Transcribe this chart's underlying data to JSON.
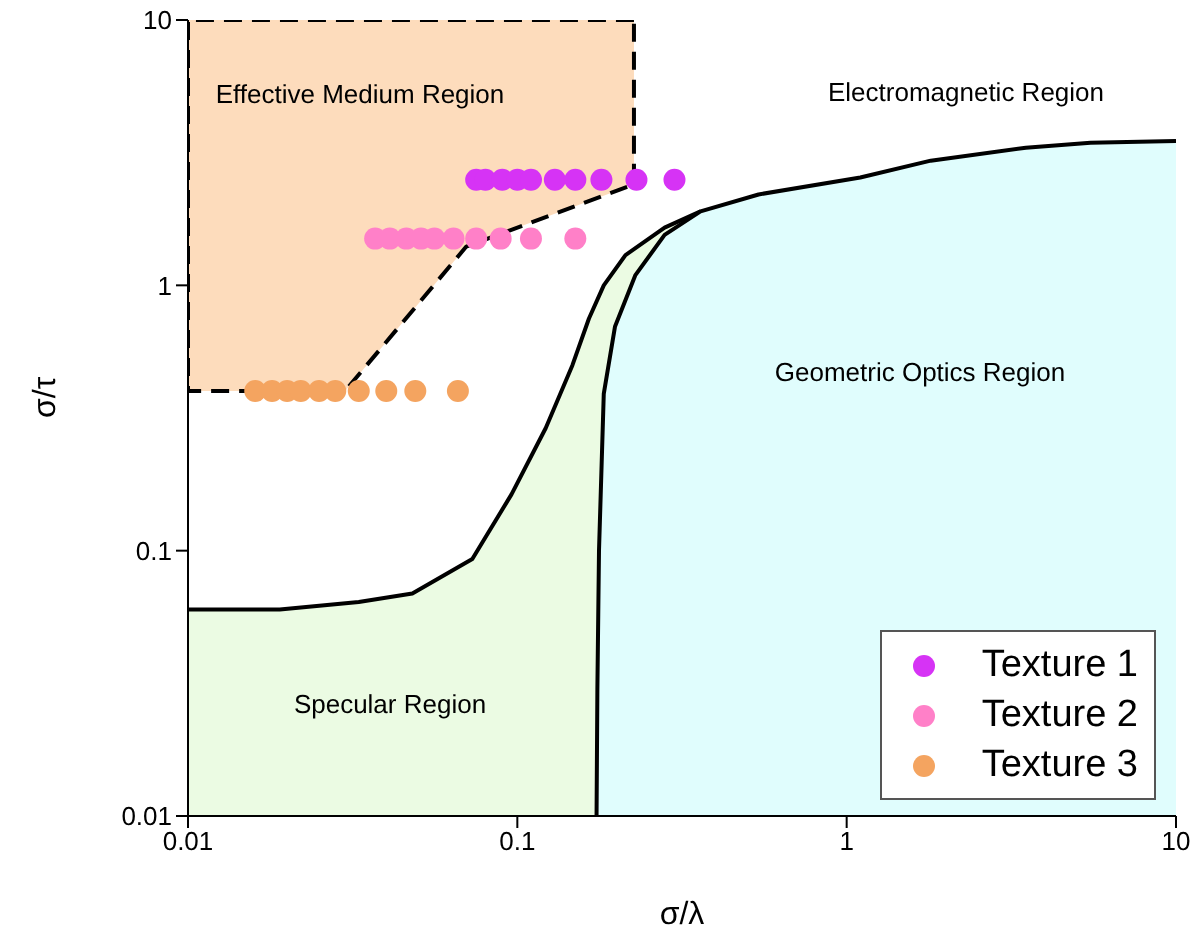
{
  "chart_data": {
    "type": "scatter",
    "xlabel": "σ/λ",
    "ylabel": "σ/τ",
    "log": "xy",
    "xlim": [
      0.01,
      10
    ],
    "ylim": [
      0.01,
      10
    ],
    "xticks": [
      0.01,
      0.1,
      1,
      10
    ],
    "yticks": [
      0.01,
      0.1,
      1,
      10
    ],
    "grid": false,
    "legend": "bottom right",
    "marker": "circle",
    "series": [
      {
        "type": "area",
        "color": "#ebfbe3",
        "line_style": "solid",
        "marker": "none",
        "x": [
          0.01,
          0.019,
          0.033,
          0.048,
          0.073,
          0.096,
          0.122,
          0.147,
          0.165,
          0.183,
          0.213,
          0.28,
          0.36
        ],
        "values": [
          0.06,
          0.06,
          0.064,
          0.069,
          0.093,
          0.163,
          0.29,
          0.5,
          0.75,
          1.0,
          1.3,
          1.65,
          1.9
        ]
      },
      {
        "type": "area",
        "color": "#e0fdfd",
        "line_style": "solid",
        "marker": "none",
        "x": [
          0.174,
          0.175,
          0.177,
          0.183,
          0.198,
          0.228,
          0.28,
          0.36,
          0.54,
          1.1,
          1.8,
          3.5,
          5.5,
          10
        ],
        "values": [
          0.01,
          0.03,
          0.1,
          0.39,
          0.7,
          1.09,
          1.55,
          1.9,
          2.2,
          2.55,
          2.95,
          3.3,
          3.45,
          3.5
        ]
      },
      {
        "type": "area",
        "color": "#fddcbc",
        "line_style": "dashed",
        "marker": "none",
        "x": [
          0.226,
          0.07,
          0.03,
          0.01,
          0.01,
          0.03,
          0.07,
          0.226,
          0.226
        ],
        "values": [
          10,
          10,
          10,
          10,
          0.4,
          0.4,
          1.4,
          2.4,
          10
        ]
      },
      {
        "name": "Texture 1",
        "color": "#d633f5",
        "x": [
          0.075,
          0.08,
          0.09,
          0.1,
          0.11,
          0.13,
          0.15,
          0.18,
          0.23,
          0.3
        ],
        "values": [
          2.5,
          2.5,
          2.5,
          2.5,
          2.5,
          2.5,
          2.5,
          2.5,
          2.5,
          2.5
        ]
      },
      {
        "name": "Texture 2",
        "color": "#ff80c8",
        "x": [
          0.037,
          0.041,
          0.046,
          0.051,
          0.056,
          0.064,
          0.075,
          0.089,
          0.11,
          0.15
        ],
        "values": [
          1.5,
          1.5,
          1.5,
          1.5,
          1.5,
          1.5,
          1.5,
          1.5,
          1.5,
          1.5
        ]
      },
      {
        "name": "Texture 3",
        "color": "#f4a460",
        "x": [
          0.016,
          0.018,
          0.02,
          0.022,
          0.025,
          0.028,
          0.033,
          0.04,
          0.049,
          0.066
        ],
        "values": [
          0.4,
          0.4,
          0.4,
          0.4,
          0.4,
          0.4,
          0.4,
          0.4,
          0.4,
          0.4
        ]
      }
    ],
    "annotations": [
      "Effective Medium Region",
      "Electromagnetic Region",
      "Geometric Optics Region",
      "Specular Region"
    ]
  }
}
